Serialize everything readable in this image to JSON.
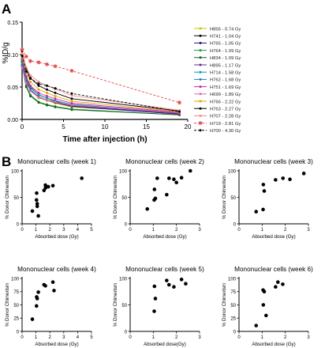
{
  "panel_a": {
    "letter": "A",
    "chart_data": {
      "type": "line",
      "xlabel": "Time after injection (h)",
      "ylabel": "%ID/g",
      "xlim": [
        0,
        20
      ],
      "ylim": [
        0,
        0.15
      ],
      "xticks": [
        "0",
        "5",
        "10",
        "15",
        "20"
      ],
      "yticks": [
        "0.00",
        "0.05",
        "0.10",
        "0.15"
      ],
      "legend_position": "right",
      "x": [
        0,
        0.5,
        1,
        2,
        3,
        4,
        6,
        19
      ],
      "series": [
        {
          "name": "H856 - 0.74 Gy",
          "color": "#c8c400",
          "marker": "circle",
          "dash": "",
          "values": [
            0.101,
            0.062,
            0.045,
            0.033,
            0.029,
            0.025,
            0.019,
            0.01
          ]
        },
        {
          "name": "H741 - 1.04 Gy",
          "color": "#000000",
          "marker": "circle",
          "dash": "",
          "values": [
            0.098,
            0.065,
            0.05,
            0.038,
            0.033,
            0.028,
            0.021,
            0.009
          ]
        },
        {
          "name": "H765 - 1.05 Gy",
          "color": "#1a1a80",
          "marker": "circle",
          "dash": "",
          "values": [
            0.09,
            0.058,
            0.045,
            0.034,
            0.03,
            0.026,
            0.02,
            0.008
          ]
        },
        {
          "name": "H764 - 1.09 Gy",
          "color": "#1e9a3a",
          "marker": "circle",
          "dash": "",
          "values": [
            0.088,
            0.052,
            0.038,
            0.027,
            0.023,
            0.02,
            0.016,
            0.007
          ]
        },
        {
          "name": "H834 - 1.09 Gy",
          "color": "#186018",
          "marker": "circle",
          "dash": "",
          "values": [
            0.083,
            0.05,
            0.036,
            0.026,
            0.022,
            0.019,
            0.015,
            0.007
          ]
        },
        {
          "name": "H895 - 1.17 Gy",
          "color": "#6a2c8a",
          "marker": "circle",
          "dash": "",
          "values": [
            0.095,
            0.06,
            0.046,
            0.035,
            0.03,
            0.026,
            0.021,
            0.009
          ]
        },
        {
          "name": "H714 - 1.58 Gy",
          "color": "#00a0b0",
          "marker": "circle",
          "dash": "",
          "values": [
            0.092,
            0.063,
            0.049,
            0.038,
            0.033,
            0.029,
            0.023,
            0.01
          ]
        },
        {
          "name": "H762 - 1.68 Gy",
          "color": "#2a7ad8",
          "marker": "circle",
          "dash": "",
          "values": [
            0.085,
            0.057,
            0.044,
            0.034,
            0.03,
            0.027,
            0.022,
            0.01
          ]
        },
        {
          "name": "H751 - 1.69 Gy",
          "color": "#d020b0",
          "marker": "circle",
          "dash": "",
          "values": [
            0.093,
            0.066,
            0.052,
            0.041,
            0.036,
            0.032,
            0.025,
            0.011
          ]
        },
        {
          "name": "H699 - 1.89 Gy",
          "color": "#e06aa8",
          "marker": "circle",
          "dash": "",
          "values": [
            0.08,
            0.056,
            0.044,
            0.034,
            0.03,
            0.027,
            0.022,
            0.01
          ]
        },
        {
          "name": "H766 - 2.22 Gy",
          "color": "#e8a000",
          "marker": "circle",
          "dash": "",
          "values": [
            0.096,
            0.072,
            0.058,
            0.046,
            0.041,
            0.036,
            0.028,
            0.012
          ]
        },
        {
          "name": "H763 - 2.27 Gy",
          "color": "#000000",
          "marker": "circle",
          "dash": "",
          "values": [
            0.105,
            0.078,
            0.064,
            0.052,
            0.046,
            0.041,
            0.032,
            0.013
          ]
        },
        {
          "name": "H707 - 2.28 Gy",
          "color": "#f08a8a",
          "marker": "circle",
          "dash": "",
          "values": [
            0.102,
            0.08,
            0.068,
            0.058,
            0.052,
            0.047,
            0.037,
            0.014
          ]
        },
        {
          "name": "H719 - 2.81 Gy",
          "color": "#e84848",
          "marker": "asterisk",
          "dash": "3,2",
          "values": [
            0.108,
            0.097,
            0.09,
            0.088,
            0.085,
            0.082,
            0.075,
            0.026
          ]
        },
        {
          "name": "H700 - 4.30 Gy",
          "color": "#000000",
          "marker": "circle",
          "dash": "3,2",
          "values": [
            0.098,
            0.074,
            0.063,
            0.055,
            0.052,
            0.048,
            0.04,
            0.012
          ]
        }
      ]
    }
  },
  "panel_b": {
    "letter": "B",
    "charts": [
      {
        "type": "scatter",
        "title": "Mononuclear cells (week 1)",
        "xlabel": "Absorbed dose (Gy)",
        "ylabel": "% Donor Chimerism",
        "xlim": [
          0,
          5
        ],
        "ylim": [
          0,
          100
        ],
        "xticks": [
          "0",
          "1",
          "2",
          "3",
          "4",
          "5"
        ],
        "yticks": [
          "0",
          "50",
          "100"
        ],
        "points": [
          [
            0.74,
            24
          ],
          [
            1.04,
            45
          ],
          [
            1.05,
            58
          ],
          [
            1.09,
            33
          ],
          [
            1.09,
            38
          ],
          [
            1.17,
            15
          ],
          [
            1.58,
            63
          ],
          [
            1.68,
            73
          ],
          [
            1.69,
            68
          ],
          [
            1.89,
            70
          ],
          [
            2.22,
            72
          ],
          [
            4.3,
            86
          ]
        ]
      },
      {
        "type": "scatter",
        "title": "Mononuclear cells (week 2)",
        "xlabel": "Absorbed dose (Gy)",
        "ylabel": "% Donor Chimerism",
        "xlim": [
          0,
          3
        ],
        "ylim": [
          0,
          100
        ],
        "xticks": [
          "0",
          "1",
          "2",
          "3"
        ],
        "yticks": [
          "0",
          "50",
          "100"
        ],
        "points": [
          [
            0.74,
            28
          ],
          [
            1.04,
            45
          ],
          [
            1.05,
            65
          ],
          [
            1.09,
            48
          ],
          [
            1.17,
            86
          ],
          [
            1.58,
            55
          ],
          [
            1.68,
            86
          ],
          [
            1.89,
            84
          ],
          [
            2.0,
            78
          ],
          [
            2.22,
            87
          ],
          [
            2.6,
            100
          ]
        ]
      },
      {
        "type": "scatter",
        "title": "Mononuclear cells (week 3)",
        "xlabel": "Absorbed dose (Gy)",
        "ylabel": "% Donor Chimerism",
        "xlim": [
          0,
          3
        ],
        "ylim": [
          0,
          100
        ],
        "xticks": [
          "0",
          "1",
          "2",
          "3"
        ],
        "yticks": [
          "0",
          "50",
          "100"
        ],
        "points": [
          [
            0.74,
            23
          ],
          [
            1.04,
            27
          ],
          [
            1.05,
            74
          ],
          [
            1.09,
            62
          ],
          [
            1.58,
            83
          ],
          [
            1.9,
            86
          ],
          [
            2.2,
            84
          ],
          [
            2.8,
            95
          ]
        ]
      },
      {
        "type": "scatter",
        "title": "Mononuclear cells (week 4)",
        "xlabel": "Absorbed dose (Gy)",
        "ylabel": "% Donor Chimerism",
        "xlim": [
          0,
          5
        ],
        "ylim": [
          0,
          100
        ],
        "xticks": [
          "0",
          "1",
          "2",
          "3",
          "4",
          "5"
        ],
        "yticks": [
          "0",
          "25",
          "50",
          "75",
          "100"
        ],
        "points": [
          [
            0.74,
            23
          ],
          [
            1.04,
            48
          ],
          [
            1.05,
            65
          ],
          [
            1.09,
            62
          ],
          [
            1.17,
            74
          ],
          [
            1.58,
            88
          ],
          [
            1.68,
            86
          ],
          [
            2.22,
            93
          ],
          [
            2.3,
            77
          ]
        ]
      },
      {
        "type": "scatter",
        "title": "Mononuclear cells (week 5)",
        "xlabel": "Absorbed dose(Gy)",
        "ylabel": "% Donor Chimerism",
        "xlim": [
          0,
          3
        ],
        "ylim": [
          0,
          100
        ],
        "xticks": [
          "0",
          "1",
          "2",
          "3"
        ],
        "yticks": [
          "0",
          "50",
          "100"
        ],
        "points": [
          [
            1.04,
            38
          ],
          [
            1.05,
            85
          ],
          [
            1.09,
            62
          ],
          [
            1.58,
            96
          ],
          [
            1.68,
            88
          ],
          [
            1.89,
            84
          ],
          [
            2.22,
            98
          ],
          [
            2.4,
            90
          ]
        ]
      },
      {
        "type": "scatter",
        "title": "Mononuclear cells (week 6)",
        "xlabel": "Absorbed dose (Gy)",
        "ylabel": "% Donor Chimerism",
        "xlim": [
          0,
          3
        ],
        "ylim": [
          0,
          100
        ],
        "xticks": [
          "0",
          "1",
          "2",
          "3"
        ],
        "yticks": [
          "0",
          "25",
          "50",
          "75",
          "100"
        ],
        "points": [
          [
            0.74,
            11
          ],
          [
            1.04,
            78
          ],
          [
            1.05,
            50
          ],
          [
            1.09,
            75
          ],
          [
            1.17,
            30
          ],
          [
            1.58,
            84
          ],
          [
            1.68,
            93
          ],
          [
            1.89,
            89
          ]
        ]
      }
    ]
  }
}
